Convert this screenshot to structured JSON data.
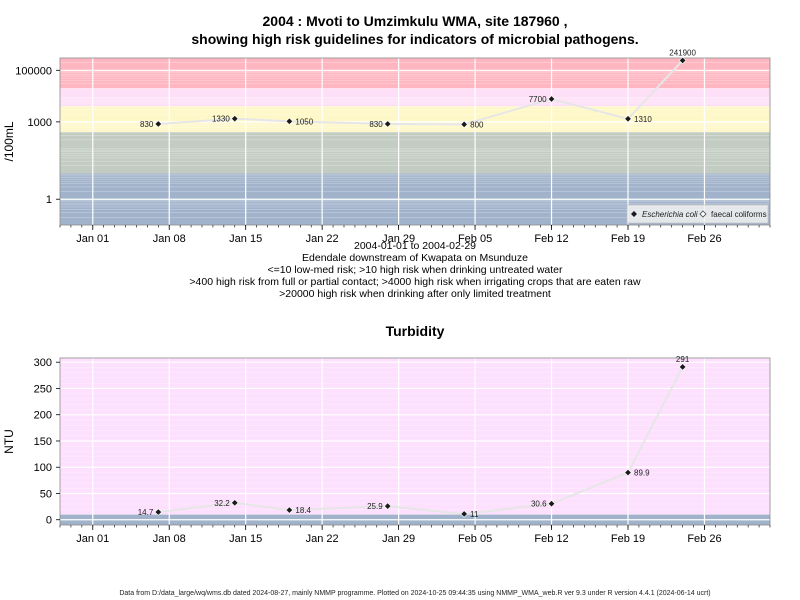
{
  "title_line1": "2004 : Mvoti to Umzimkulu WMA, site 187960 ,",
  "title_line2": "showing high risk guidelines for indicators of microbial pathogens.",
  "subtitle_lines": [
    "2004-01-01 to 2004-02-29",
    "Edendale downstream of Kwapata on Msunduze",
    "<=10 low-med risk; >10 high risk when drinking untreated water",
    ">400 high risk from full or partial contact; >4000 high risk when irrigating crops that are eaten raw",
    ">20000 high risk when drinking after only limited treatment"
  ],
  "footer": "Data from D:/data_large/wq/wms.db dated 2024-08-27, mainly NMMP programme. Plotted on 2024-10-25 09:44:35 using NMMP_WMA_web.R ver 9.3 under R version 4.4.1 (2024-06-14 ucrt)",
  "colors": {
    "band_red": "#ffb6c1",
    "band_pink": "#fde0f7",
    "band_yellow": "#fef8c8",
    "band_gray": "#c2ccc2",
    "band_blue": "#a1b2cb",
    "turb_pink": "#fde0fd",
    "line": "#e6e6e6",
    "grid": "#ffffff",
    "point": "#1a1a1a"
  },
  "chart_data": [
    {
      "type": "line",
      "ylabel": "/100mL",
      "y_scale": "log",
      "yticks": [
        1,
        1000,
        100000
      ],
      "ytick_labels": [
        "1",
        "1000",
        "100000"
      ],
      "x_tick_labels": [
        "Jan 01",
        "Jan 08",
        "Jan 15",
        "Jan 22",
        "Jan 29",
        "Feb 05",
        "Feb 12",
        "Feb 19",
        "Feb 26"
      ],
      "x_tick_dates": [
        "2004-01-01",
        "2004-01-08",
        "2004-01-15",
        "2004-01-22",
        "2004-01-29",
        "2004-02-05",
        "2004-02-12",
        "2004-02-19",
        "2004-02-26"
      ],
      "xlim": [
        "2003-12-29",
        "2004-03-03"
      ],
      "ylim": [
        0.1,
        300000
      ],
      "grid": true,
      "legend_position": "bottom-right",
      "legend": [
        "Escherichia coli",
        "faecal coliforms"
      ],
      "risk_bands": [
        {
          "from": 20000,
          "to": 300000,
          "color": "band_red"
        },
        {
          "from": 4000,
          "to": 20000,
          "color": "band_pink"
        },
        {
          "from": 400,
          "to": 4000,
          "color": "band_yellow"
        },
        {
          "from": 10,
          "to": 400,
          "color": "band_gray"
        },
        {
          "from": 0.1,
          "to": 10,
          "color": "band_blue"
        }
      ],
      "series": [
        {
          "name": "Escherichia coli",
          "x": [
            "2004-01-07",
            "2004-01-14",
            "2004-01-19",
            "2004-01-28",
            "2004-02-04",
            "2004-02-12",
            "2004-02-19",
            "2004-02-24"
          ],
          "values": [
            830,
            1330,
            1050,
            830,
            800,
            7700,
            1310,
            241900
          ],
          "labels": [
            "830",
            "1330",
            "1050",
            "830",
            "800",
            "7700",
            "1310",
            "241900"
          ]
        }
      ]
    },
    {
      "type": "line",
      "title": "Turbidity",
      "ylabel": "NTU",
      "yticks": [
        0,
        50,
        100,
        150,
        200,
        250,
        300
      ],
      "ytick_labels": [
        "0",
        "50",
        "100",
        "150",
        "200",
        "250",
        "300"
      ],
      "x_tick_labels": [
        "Jan 01",
        "Jan 08",
        "Jan 15",
        "Jan 22",
        "Jan 29",
        "Feb 05",
        "Feb 12",
        "Feb 19",
        "Feb 26"
      ],
      "x_tick_dates": [
        "2004-01-01",
        "2004-01-08",
        "2004-01-15",
        "2004-01-22",
        "2004-01-29",
        "2004-02-05",
        "2004-02-12",
        "2004-02-19",
        "2004-02-26"
      ],
      "xlim": [
        "2003-12-29",
        "2004-03-03"
      ],
      "ylim": [
        -10,
        308
      ],
      "grid": true,
      "bands": [
        {
          "from": 10,
          "to": 308,
          "color": "turb_pink"
        },
        {
          "from": -10,
          "to": 10,
          "color": "band_blue"
        }
      ],
      "series": [
        {
          "name": "",
          "x": [
            "2004-01-07",
            "2004-01-14",
            "2004-01-19",
            "2004-01-28",
            "2004-02-04",
            "2004-02-12",
            "2004-02-19",
            "2004-02-24"
          ],
          "values": [
            14.7,
            32.2,
            18.4,
            25.9,
            11,
            30.6,
            89.9,
            291
          ],
          "labels": [
            "14.7",
            "32.2",
            "18.4",
            "25.9",
            "11",
            "30.6",
            "89.9",
            "291"
          ]
        }
      ]
    }
  ]
}
